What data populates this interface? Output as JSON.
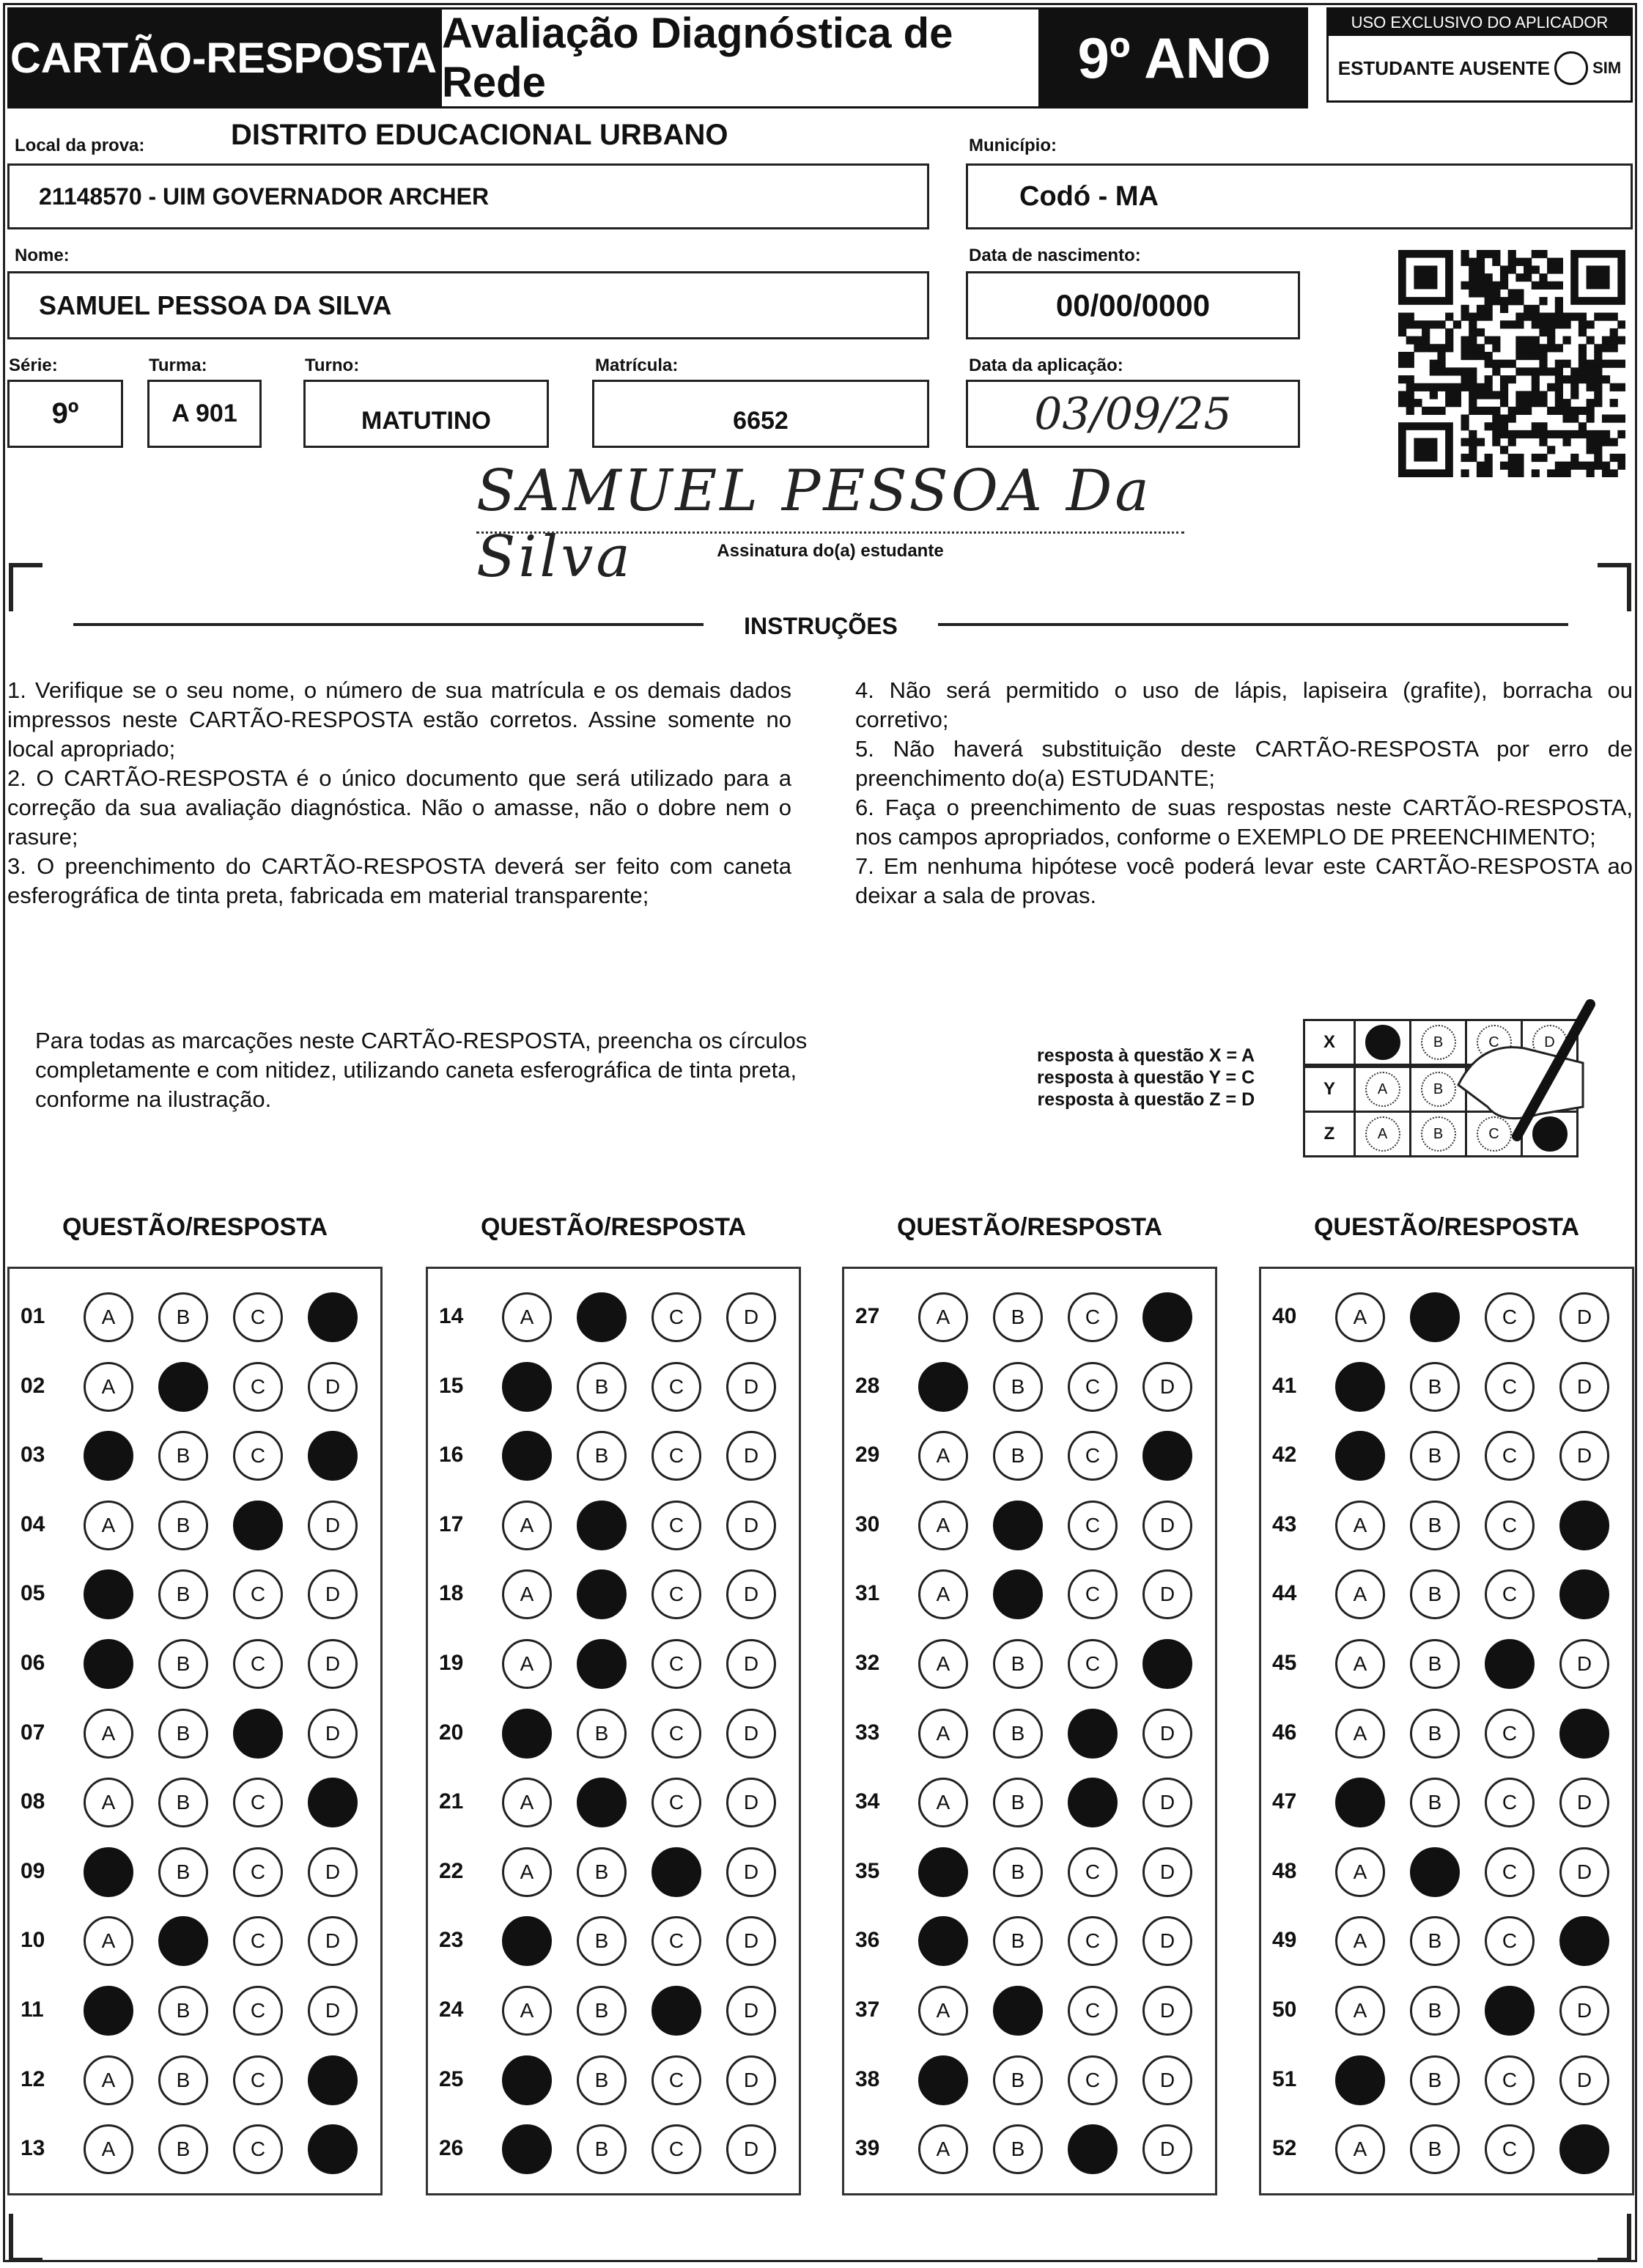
{
  "header": {
    "card_title": "CARTÃO-RESPOSTA",
    "exam_title": "Avaliação Diagnóstica de Rede",
    "grade": "9º ANO",
    "applicator": {
      "title": "USO EXCLUSIVO DO APLICADOR",
      "absent_label": "ESTUDANTE AUSENTE",
      "absent_option": "SIM"
    }
  },
  "student": {
    "local_label": "Local da prova:",
    "district": "DISTRITO EDUCACIONAL URBANO",
    "local_value": "21148570 - UIM GOVERNADOR ARCHER",
    "municipio_label": "Município:",
    "municipio_value": "Codó - MA",
    "nome_label": "Nome:",
    "nome_value": "SAMUEL PESSOA DA SILVA",
    "nascimento_label": "Data de nascimento:",
    "nascimento_value": "00/00/0000",
    "serie_label": "Série:",
    "serie_value": "9º",
    "turma_label": "Turma:",
    "turma_value": "A 901",
    "turno_label": "Turno:",
    "turno_value": "MATUTINO",
    "matricula_label": "Matrícula:",
    "matricula_value": "6652",
    "aplicacao_label": "Data da aplicação:",
    "aplicacao_value": "03/09/25",
    "signature": "SAMUEL PESSOA Da Silva",
    "signature_label": "Assinatura do(a) estudante"
  },
  "instructions": {
    "title": "INSTRUÇÕES",
    "left": [
      "1. Verifique se o seu nome, o número de sua matrícula e os demais dados impressos neste CARTÃO-RESPOSTA estão corretos. Assine somente no local apropriado;",
      "2. O CARTÃO-RESPOSTA é o único documento que será utilizado para a correção da sua avaliação diagnóstica. Não o amasse, não o dobre nem o rasure;",
      "3. O preenchimento do CARTÃO-RESPOSTA deverá ser feito com caneta esferográfica de tinta preta, fabricada em material transparente;"
    ],
    "right": [
      "4. Não será permitido o uso de lápis, lapiseira (grafite), borracha ou corretivo;",
      "5. Não haverá substituição deste CARTÃO-RESPOSTA por erro de preenchimento do(a) ESTUDANTE;",
      "6. Faça o preenchimento de suas respostas neste CARTÃO-RESPOSTA, nos campos apropriados, conforme o EXEMPLO DE PREENCHIMENTO;",
      "7. Em nenhuma hipótese você poderá levar este CARTÃO-RESPOSTA ao deixar a sala de provas."
    ],
    "fill_note": "Para todas as marcações neste CARTÃO-RESPOSTA, preencha os círculos completamente e com nitidez, utilizando caneta esferográfica de tinta preta, conforme na ilustração.",
    "example_lines": [
      "resposta à questão X = A",
      "resposta à questão Y = C",
      "resposta à questão Z = D"
    ],
    "example_rows": [
      {
        "q": "X",
        "filled": "A"
      },
      {
        "q": "Y",
        "filled": "C"
      },
      {
        "q": "Z",
        "filled": "D"
      }
    ]
  },
  "answers": {
    "column_header": "QUESTÃO/RESPOSTA",
    "options": [
      "A",
      "B",
      "C",
      "D"
    ],
    "columns": [
      [
        [
          "01",
          "D"
        ],
        [
          "02",
          "B"
        ],
        [
          "03",
          "AD"
        ],
        [
          "04",
          "C"
        ],
        [
          "05",
          "A"
        ],
        [
          "06",
          "A"
        ],
        [
          "07",
          "C"
        ],
        [
          "08",
          "D"
        ],
        [
          "09",
          "A"
        ],
        [
          "10",
          "B"
        ],
        [
          "11",
          "A"
        ],
        [
          "12",
          "D"
        ],
        [
          "13",
          "D"
        ]
      ],
      [
        [
          "14",
          "B"
        ],
        [
          "15",
          "A"
        ],
        [
          "16",
          "A"
        ],
        [
          "17",
          "B"
        ],
        [
          "18",
          "B"
        ],
        [
          "19",
          "B"
        ],
        [
          "20",
          "A"
        ],
        [
          "21",
          "B"
        ],
        [
          "22",
          "C"
        ],
        [
          "23",
          "A"
        ],
        [
          "24",
          "C"
        ],
        [
          "25",
          "A"
        ],
        [
          "26",
          "A"
        ]
      ],
      [
        [
          "27",
          "D"
        ],
        [
          "28",
          "A"
        ],
        [
          "29",
          "D"
        ],
        [
          "30",
          "B"
        ],
        [
          "31",
          "B"
        ],
        [
          "32",
          "D"
        ],
        [
          "33",
          "C"
        ],
        [
          "34",
          "C"
        ],
        [
          "35",
          "A"
        ],
        [
          "36",
          "A"
        ],
        [
          "37",
          "B"
        ],
        [
          "38",
          "A"
        ],
        [
          "39",
          "C"
        ]
      ],
      [
        [
          "40",
          "B"
        ],
        [
          "41",
          "A"
        ],
        [
          "42",
          "A"
        ],
        [
          "43",
          "D"
        ],
        [
          "44",
          "D"
        ],
        [
          "45",
          "C"
        ],
        [
          "46",
          "D"
        ],
        [
          "47",
          "A"
        ],
        [
          "48",
          "B"
        ],
        [
          "49",
          "D"
        ],
        [
          "50",
          "C"
        ],
        [
          "51",
          "A"
        ],
        [
          "52",
          "D"
        ]
      ]
    ]
  }
}
